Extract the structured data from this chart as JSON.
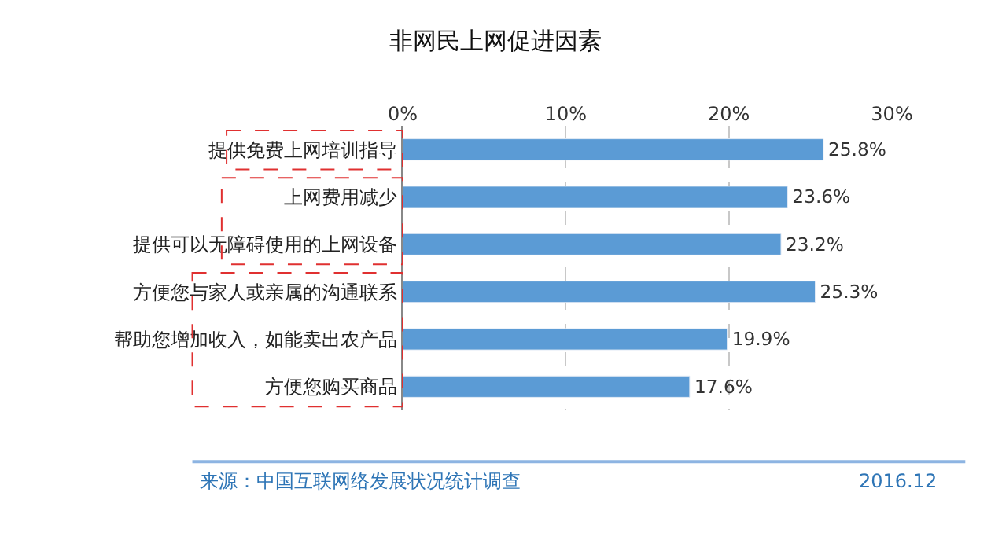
{
  "chart_data": {
    "type": "bar",
    "orientation": "horizontal",
    "title": "非网民上网促进因素",
    "categories": [
      "提供免费上网培训指导",
      "上网费用减少",
      "提供可以无障碍使用的上网设备",
      "方便您与家人或亲属的沟通联系",
      "帮助您增加收入，如能卖出农产品",
      "方便您购买商品"
    ],
    "values": [
      25.8,
      23.6,
      23.2,
      25.3,
      19.9,
      17.6
    ],
    "value_labels": [
      "25.8%",
      "23.6%",
      "23.2%",
      "25.3%",
      "19.9%",
      "17.6%"
    ],
    "color": "#5b9bd5",
    "xlim": [
      0,
      30
    ],
    "xticks": [
      {
        "value": 0,
        "label": "0%"
      },
      {
        "value": 10,
        "label": "10%"
      },
      {
        "value": 20,
        "label": "20%"
      },
      {
        "value": 30,
        "label": "30%"
      }
    ],
    "grid": "x",
    "legend": false,
    "annotations": [
      "来源：中国互联网络发展状况统计调查",
      "2016.12"
    ]
  }
}
